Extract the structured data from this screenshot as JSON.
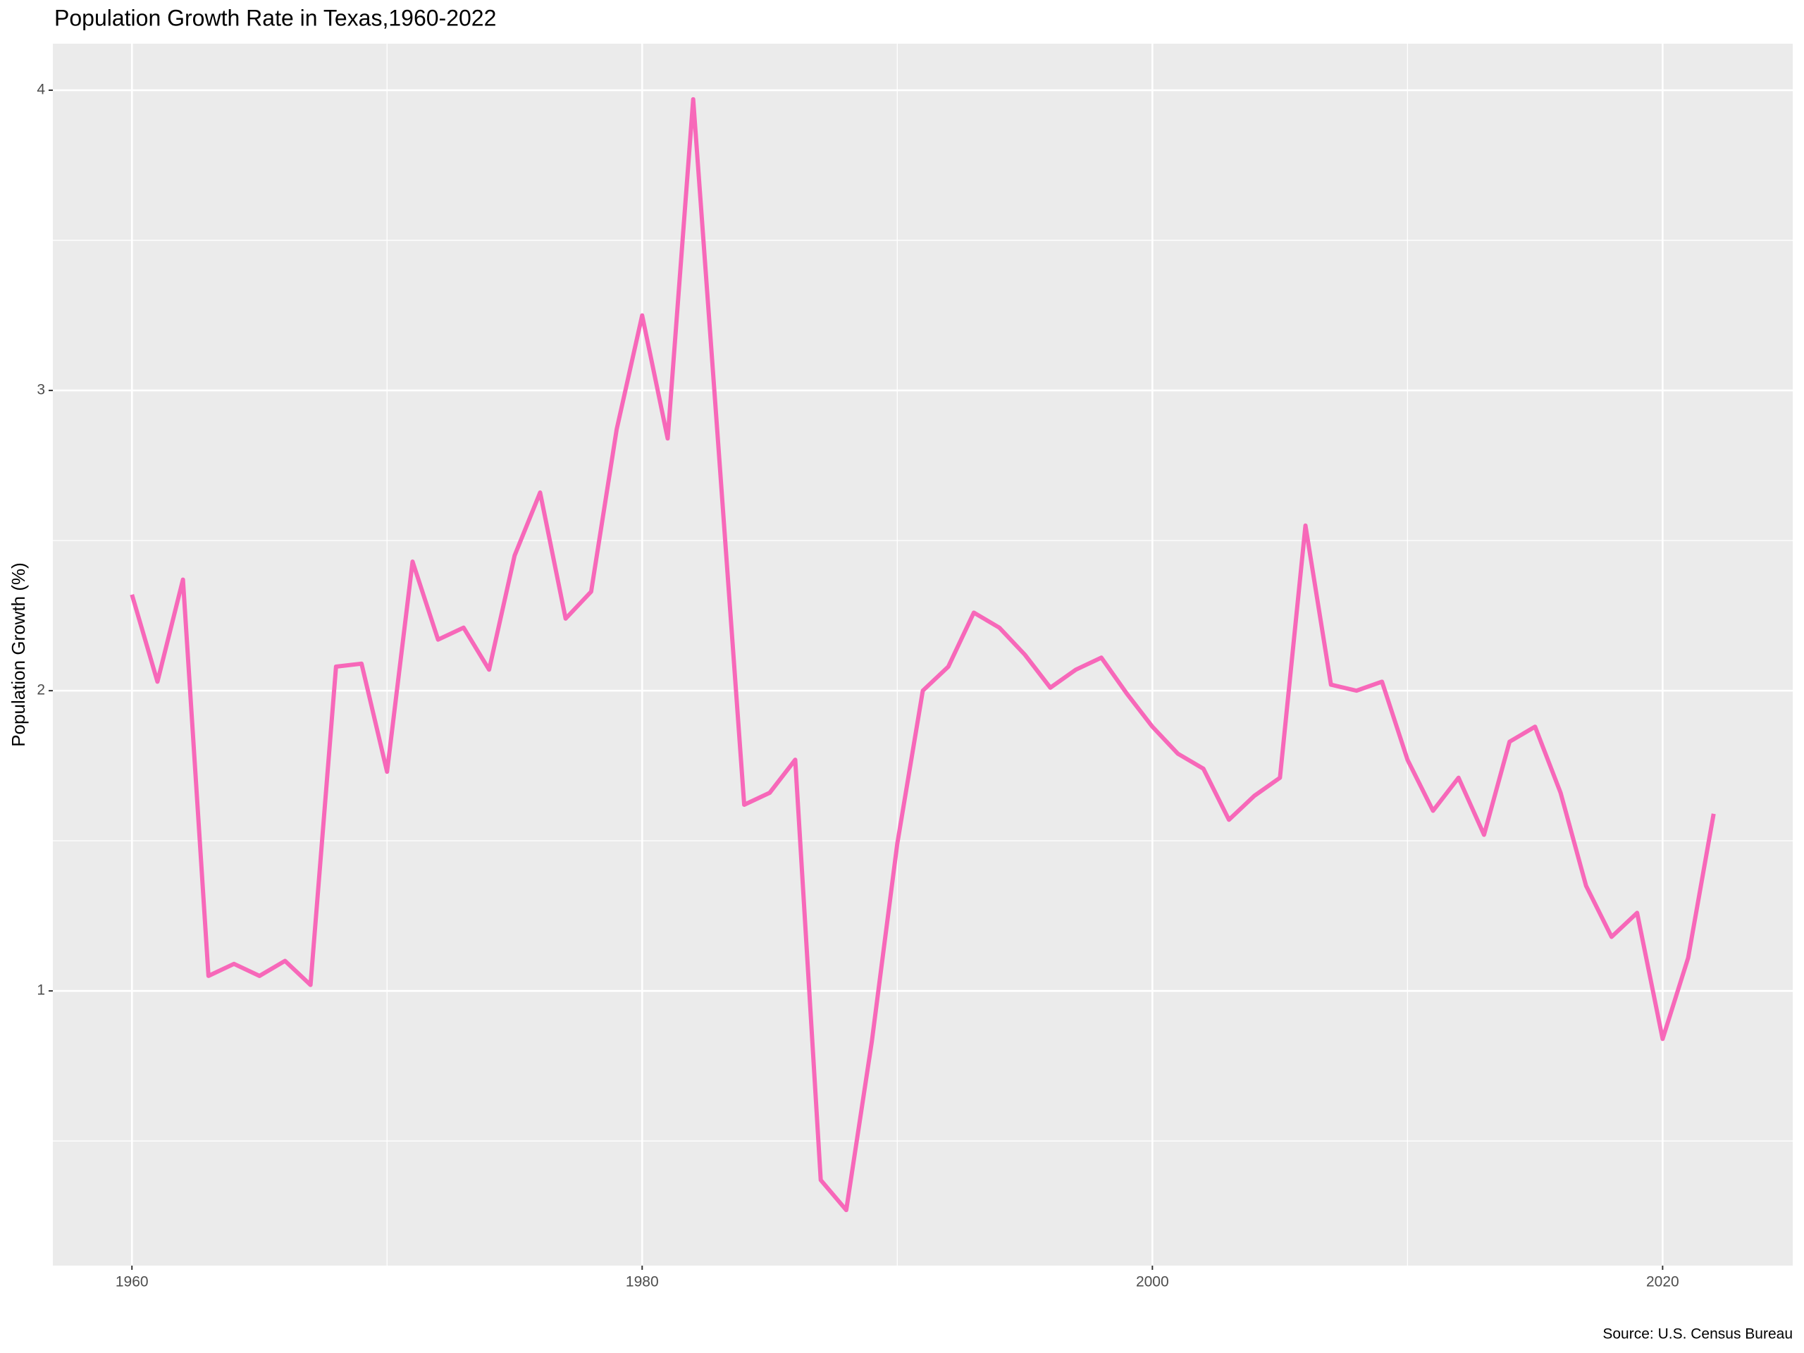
{
  "chart_data": {
    "type": "line",
    "title": "Population Growth Rate in Texas,1960-2022",
    "y_label": "Population Growth (%)",
    "caption": "Source: U.S. Census Bureau",
    "x": [
      1960,
      1961,
      1962,
      1963,
      1964,
      1965,
      1966,
      1967,
      1968,
      1969,
      1970,
      1971,
      1972,
      1973,
      1974,
      1975,
      1976,
      1977,
      1978,
      1979,
      1980,
      1981,
      1982,
      1983,
      1984,
      1985,
      1986,
      1987,
      1988,
      1989,
      1990,
      1991,
      1992,
      1993,
      1994,
      1995,
      1996,
      1997,
      1998,
      1999,
      2000,
      2001,
      2002,
      2003,
      2004,
      2005,
      2006,
      2007,
      2008,
      2009,
      2010,
      2011,
      2012,
      2013,
      2014,
      2015,
      2016,
      2017,
      2018,
      2019,
      2020,
      2021,
      2022
    ],
    "series": [
      {
        "name": "Population Growth",
        "color": "#f768b9",
        "values": [
          2.32,
          2.03,
          2.37,
          1.05,
          1.09,
          1.05,
          1.1,
          1.02,
          2.08,
          2.09,
          1.73,
          2.43,
          2.17,
          2.21,
          2.07,
          2.45,
          2.66,
          2.24,
          2.33,
          2.87,
          3.25,
          2.84,
          3.97,
          2.8,
          1.62,
          1.66,
          1.77,
          0.37,
          0.27,
          0.83,
          1.49,
          2.0,
          2.08,
          2.26,
          2.21,
          2.12,
          2.01,
          2.07,
          2.11,
          1.99,
          1.88,
          1.79,
          1.74,
          1.57,
          1.65,
          1.71,
          2.55,
          2.02,
          2.0,
          2.03,
          1.77,
          1.6,
          1.71,
          1.52,
          1.83,
          1.88,
          1.66,
          1.35,
          1.18,
          1.26,
          0.84,
          1.11,
          1.59
        ]
      }
    ],
    "xlim": [
      1956.9,
      2025.1
    ],
    "xticks": [
      1960,
      1980,
      2000,
      2020
    ],
    "ylim": [
      0.085,
      4.155
    ],
    "yticks": [
      1,
      2,
      3,
      4
    ],
    "grid": true
  }
}
